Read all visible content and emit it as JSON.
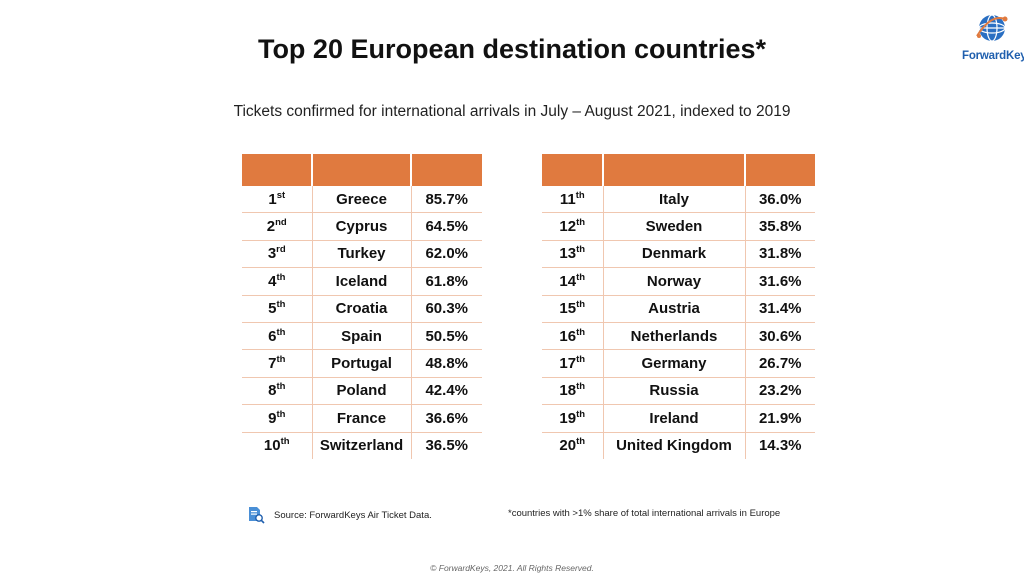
{
  "title": "Top 20 European destination countries*",
  "subtitle": "Tickets confirmed for international arrivals in July – August 2021, indexed to 2019",
  "logo": {
    "text": "ForwardKeys",
    "icon": "globe-logo-icon",
    "color": "#1f5fae"
  },
  "accent_color": "#e07a3f",
  "left_table": [
    {
      "num": "1",
      "sup": "st",
      "country": "Greece",
      "pct": "85.7%"
    },
    {
      "num": "2",
      "sup": "nd",
      "country": "Cyprus",
      "pct": "64.5%"
    },
    {
      "num": "3",
      "sup": "rd",
      "country": "Turkey",
      "pct": "62.0%"
    },
    {
      "num": "4",
      "sup": "th",
      "country": "Iceland",
      "pct": "61.8%"
    },
    {
      "num": "5",
      "sup": "th",
      "country": "Croatia",
      "pct": "60.3%"
    },
    {
      "num": "6",
      "sup": "th",
      "country": "Spain",
      "pct": "50.5%"
    },
    {
      "num": "7",
      "sup": "th",
      "country": "Portugal",
      "pct": "48.8%"
    },
    {
      "num": "8",
      "sup": "th",
      "country": "Poland",
      "pct": "42.4%"
    },
    {
      "num": "9",
      "sup": "th",
      "country": "France",
      "pct": "36.6%"
    },
    {
      "num": "10",
      "sup": "th",
      "country": "Switzerland",
      "pct": "36.5%"
    }
  ],
  "right_table": [
    {
      "num": "11",
      "sup": "th",
      "country": "Italy",
      "pct": "36.0%"
    },
    {
      "num": "12",
      "sup": "th",
      "country": "Sweden",
      "pct": "35.8%"
    },
    {
      "num": "13",
      "sup": "th",
      "country": "Denmark",
      "pct": "31.8%"
    },
    {
      "num": "14",
      "sup": "th",
      "country": "Norway",
      "pct": "31.6%"
    },
    {
      "num": "15",
      "sup": "th",
      "country": "Austria",
      "pct": "31.4%"
    },
    {
      "num": "16",
      "sup": "th",
      "country": "Netherlands",
      "pct": "30.6%"
    },
    {
      "num": "17",
      "sup": "th",
      "country": "Germany",
      "pct": "26.7%"
    },
    {
      "num": "18",
      "sup": "th",
      "country": "Russia",
      "pct": "23.2%"
    },
    {
      "num": "19",
      "sup": "th",
      "country": "Ireland",
      "pct": "21.9%"
    },
    {
      "num": "20",
      "sup": "th",
      "country": "United Kingdom",
      "pct": "14.3%"
    }
  ],
  "source": {
    "icon": "document-search-icon",
    "text": "Source: ForwardKeys Air Ticket Data."
  },
  "footnote": "*countries with >1% share of total international arrivals in Europe",
  "copyright": "© ForwardKeys, 2021. All Rights Reserved."
}
